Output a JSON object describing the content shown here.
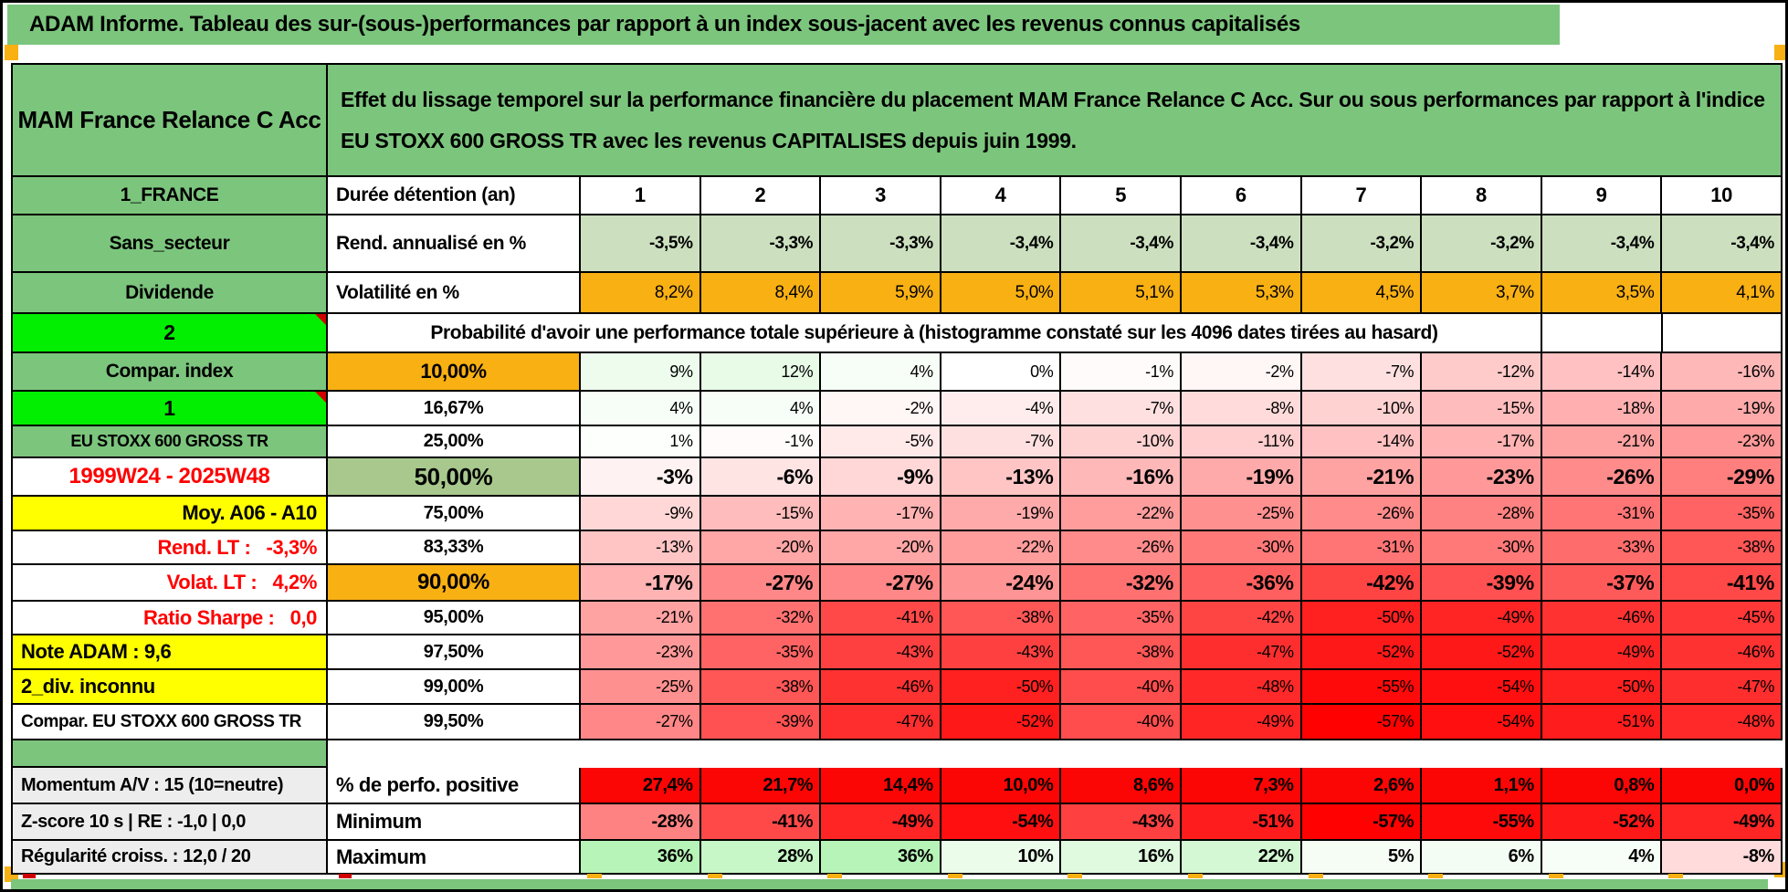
{
  "title": "ADAM Informe. Tableau des sur-(sous-)performances par rapport à un index sous-jacent avec les revenus connus capitalisés",
  "header": {
    "fund_name": "MAM France Relance C Acc",
    "description": "Effet du lissage temporel sur la performance financière du placement MAM France Relance C Acc. Sur ou sous performances par rapport à l'indice EU STOXX 600 GROSS TR avec les revenus CAPITALISES depuis juin 1999."
  },
  "columns": [
    "1",
    "2",
    "3",
    "4",
    "5",
    "6",
    "7",
    "8",
    "9",
    "10"
  ],
  "rows": {
    "duration": {
      "left": "1_FRANCE",
      "label": "Durée détention (an)"
    },
    "annualized_return": {
      "left": "Sans_secteur",
      "label": "Rend. annualisé en %",
      "values": [
        "-3,5%",
        "-3,3%",
        "-3,3%",
        "-3,4%",
        "-3,4%",
        "-3,4%",
        "-3,2%",
        "-3,2%",
        "-3,4%",
        "-3,4%"
      ]
    },
    "volatility": {
      "left": "Dividende",
      "label": "Volatilité en %",
      "values": [
        "8,2%",
        "8,4%",
        "5,9%",
        "5,0%",
        "5,1%",
        "5,3%",
        "4,5%",
        "3,7%",
        "3,5%",
        "4,1%"
      ]
    },
    "probability_header": {
      "left": "2",
      "label": "Probabilité d'avoir une performance totale supérieure à (histogramme constaté sur les 4096 dates tirées au hasard)"
    },
    "percentiles": [
      {
        "left": "Compar. index",
        "pct": "10,00%",
        "values": [
          "9%",
          "12%",
          "4%",
          "0%",
          "-1%",
          "-2%",
          "-7%",
          "-12%",
          "-14%",
          "-16%"
        ]
      },
      {
        "left": "1",
        "pct": "16,67%",
        "values": [
          "4%",
          "4%",
          "-2%",
          "-4%",
          "-7%",
          "-8%",
          "-10%",
          "-15%",
          "-18%",
          "-19%"
        ]
      },
      {
        "left": "EU STOXX 600 GROSS TR",
        "pct": "25,00%",
        "values": [
          "1%",
          "-1%",
          "-5%",
          "-7%",
          "-10%",
          "-11%",
          "-14%",
          "-17%",
          "-21%",
          "-23%"
        ]
      },
      {
        "left": "1999W24 - 2025W48",
        "pct": "50,00%",
        "values": [
          "-3%",
          "-6%",
          "-9%",
          "-13%",
          "-16%",
          "-19%",
          "-21%",
          "-23%",
          "-26%",
          "-29%"
        ]
      },
      {
        "left": "Moy. A06 - A10",
        "pct": "75,00%",
        "values": [
          "-9%",
          "-15%",
          "-17%",
          "-19%",
          "-22%",
          "-25%",
          "-26%",
          "-28%",
          "-31%",
          "-35%"
        ]
      },
      {
        "left": "Rend. LT :   -3,3%",
        "pct": "83,33%",
        "values": [
          "-13%",
          "-20%",
          "-20%",
          "-22%",
          "-26%",
          "-30%",
          "-31%",
          "-30%",
          "-33%",
          "-38%"
        ]
      },
      {
        "left": "Volat. LT :   4,2%",
        "pct": "90,00%",
        "values": [
          "-17%",
          "-27%",
          "-27%",
          "-24%",
          "-32%",
          "-36%",
          "-42%",
          "-39%",
          "-37%",
          "-41%"
        ]
      },
      {
        "left": "Ratio Sharpe :   0,0",
        "pct": "95,00%",
        "values": [
          "-21%",
          "-32%",
          "-41%",
          "-38%",
          "-35%",
          "-42%",
          "-50%",
          "-49%",
          "-46%",
          "-45%"
        ]
      },
      {
        "left": "Note ADAM : 9,6",
        "pct": "97,50%",
        "values": [
          "-23%",
          "-35%",
          "-43%",
          "-43%",
          "-38%",
          "-47%",
          "-52%",
          "-52%",
          "-49%",
          "-46%"
        ]
      },
      {
        "left": "2_div. inconnu",
        "pct": "99,00%",
        "values": [
          "-25%",
          "-38%",
          "-46%",
          "-50%",
          "-40%",
          "-48%",
          "-55%",
          "-54%",
          "-50%",
          "-47%"
        ]
      },
      {
        "left": "Compar. EU STOXX 600 GROSS TR",
        "pct": "99,50%",
        "values": [
          "-27%",
          "-39%",
          "-47%",
          "-52%",
          "-40%",
          "-49%",
          "-57%",
          "-54%",
          "-51%",
          "-48%"
        ]
      }
    ],
    "positive_perf": {
      "left": "Momentum A/V : 15 (10=neutre)",
      "label": "% de perfo. positive",
      "values": [
        "27,4%",
        "21,7%",
        "14,4%",
        "10,0%",
        "8,6%",
        "7,3%",
        "2,6%",
        "1,1%",
        "0,8%",
        "0,0%"
      ]
    },
    "minimum": {
      "left": "Z-score 10 s | RE : -1,0 | 0,0",
      "label": "Minimum",
      "values": [
        "-28%",
        "-41%",
        "-49%",
        "-54%",
        "-43%",
        "-51%",
        "-57%",
        "-55%",
        "-52%",
        "-49%"
      ]
    },
    "maximum": {
      "left": "Régularité croiss. : 12,0 / 20",
      "label": "Maximum",
      "values": [
        "36%",
        "28%",
        "36%",
        "10%",
        "16%",
        "22%",
        "5%",
        "6%",
        "4%",
        "-8%"
      ]
    }
  },
  "colors": {
    "header_green": "#7CC57D",
    "bright_green": "#02EF02",
    "orange": "#F9B013",
    "sage_light": "#CCE0BF",
    "sage_mid": "#A8C88D",
    "yellow": "#FFFF00",
    "gray_label": "#EDEDED",
    "red_text": "#FF0000",
    "solid_red": "#FB0505"
  }
}
